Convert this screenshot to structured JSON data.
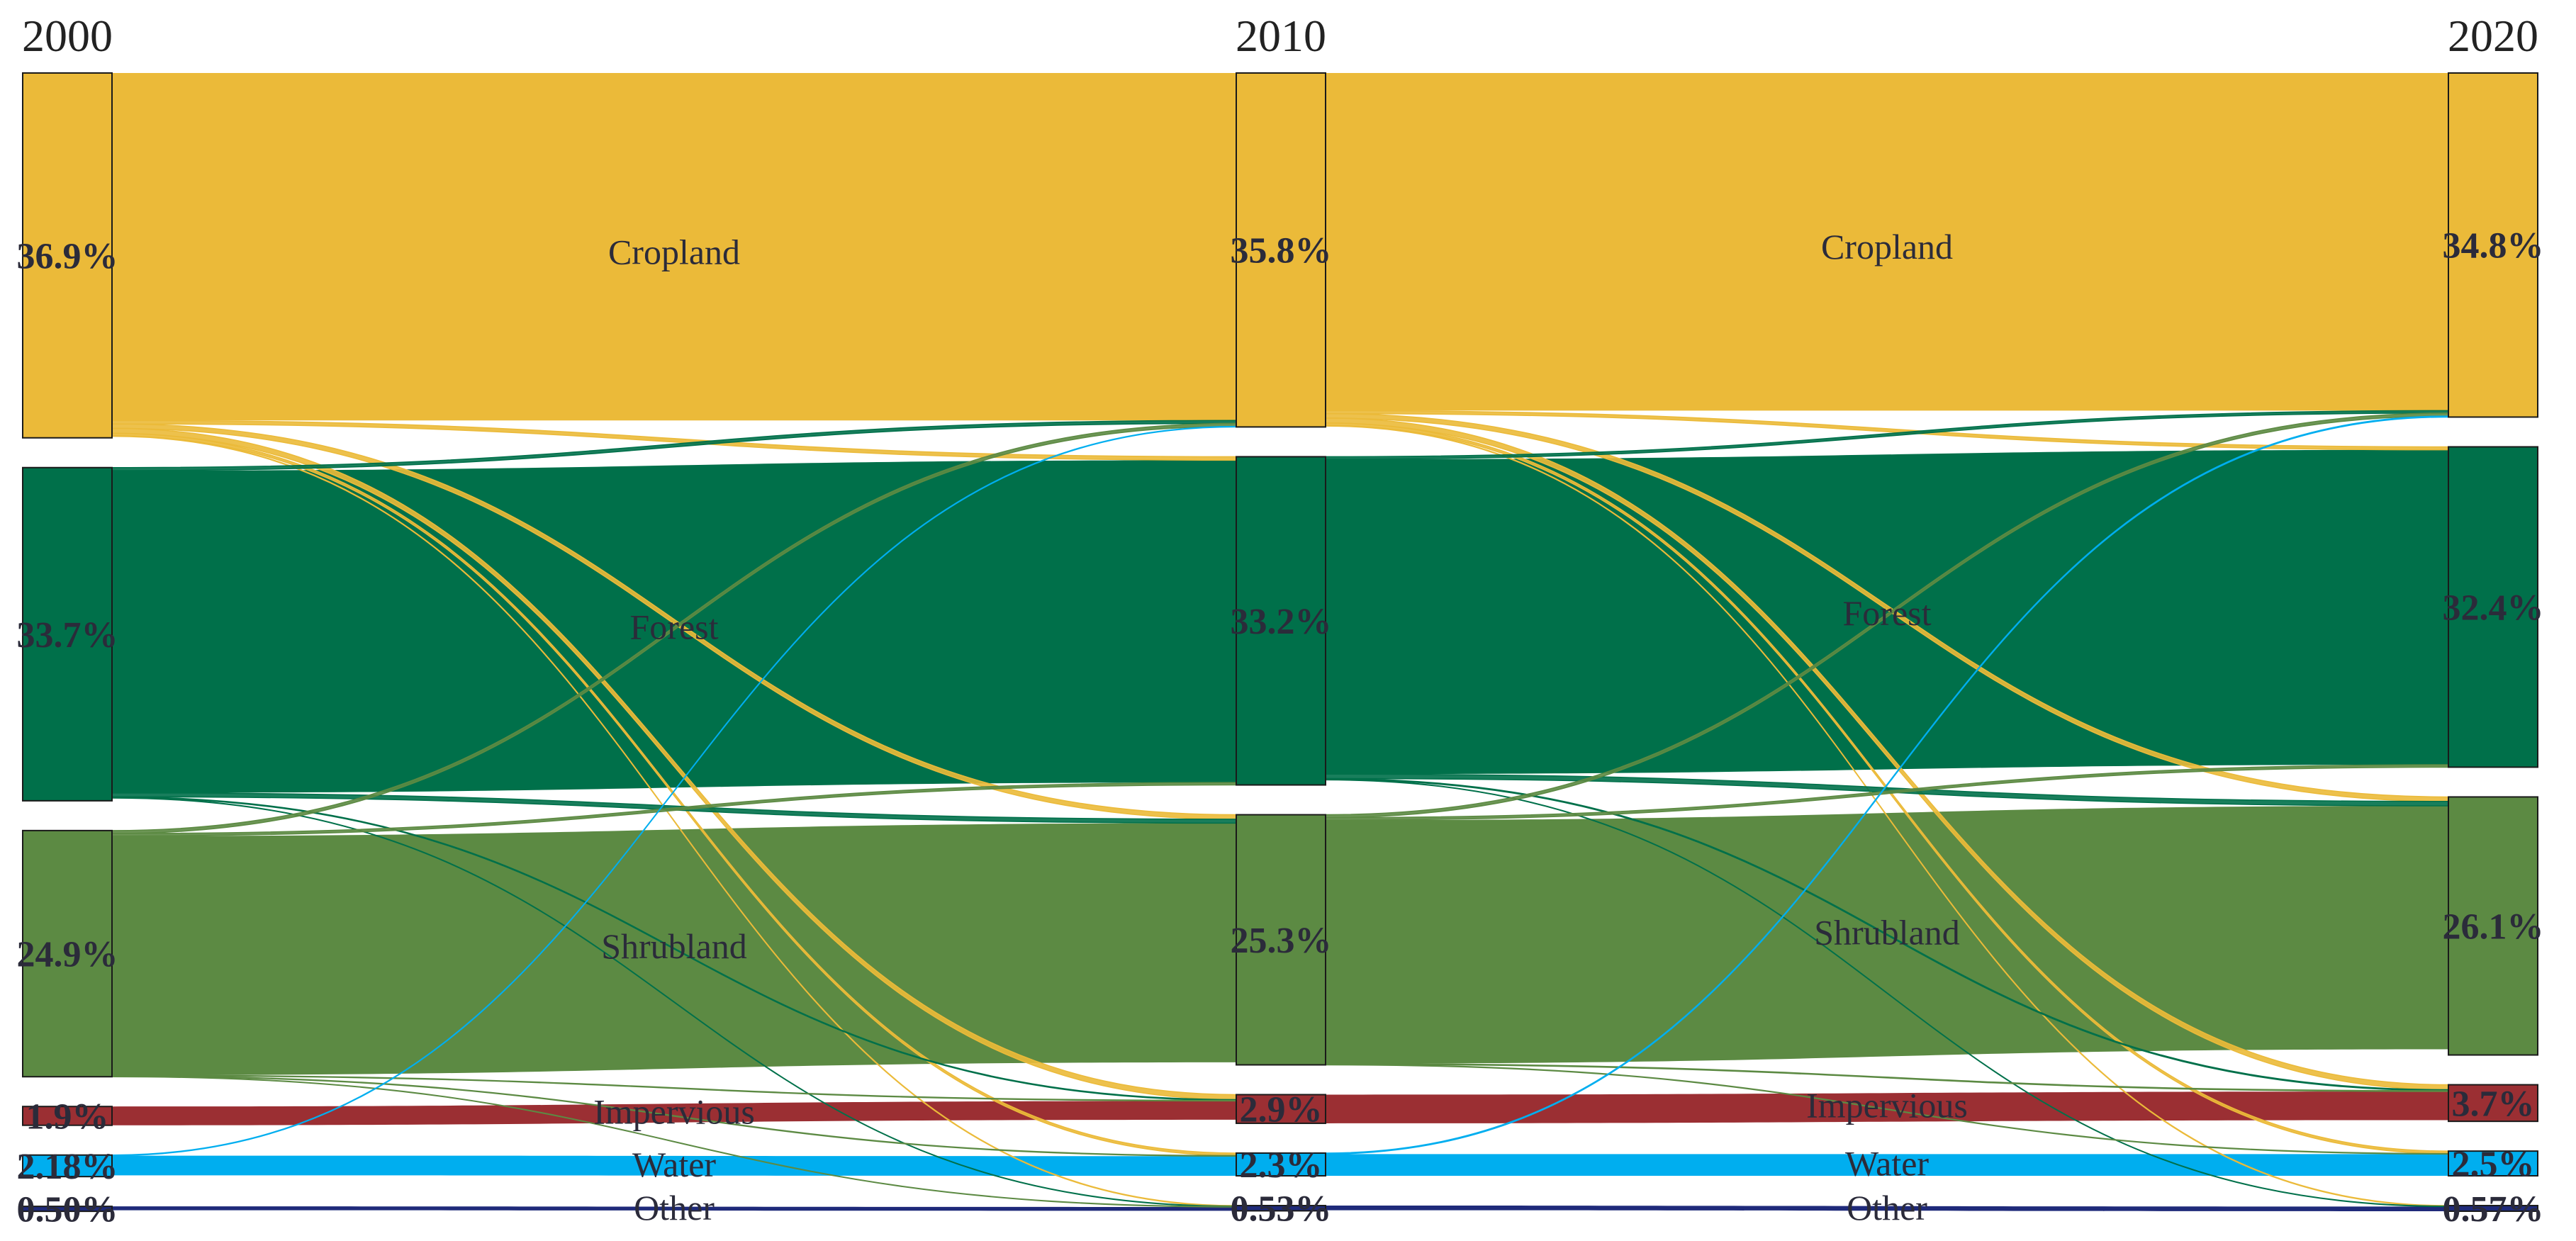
{
  "chart_data": {
    "type": "sankey",
    "years": [
      "2000",
      "2010",
      "2020"
    ],
    "classes": [
      {
        "name": "Cropland",
        "color": "#ebba39"
      },
      {
        "name": "Forest",
        "color": "#00704a"
      },
      {
        "name": "Shrubland",
        "color": "#5c8a43"
      },
      {
        "name": "Impervious",
        "color": "#9b2f33"
      },
      {
        "name": "Water",
        "color": "#00aeef"
      },
      {
        "name": "Other",
        "color": "#1f2a7a"
      }
    ],
    "percent_labels": {
      "2000": [
        "36.9%",
        "33.7%",
        "24.9%",
        "1.9%",
        "2.18%",
        "0.50%"
      ],
      "2010": [
        "35.8%",
        "33.2%",
        "25.3%",
        "2.9%",
        "2.3%",
        "0.53%"
      ],
      "2020": [
        "34.8%",
        "32.4%",
        "26.1%",
        "3.7%",
        "2.5%",
        "0.57%"
      ]
    },
    "shares": {
      "2000": [
        36.9,
        33.7,
        24.9,
        1.9,
        2.18,
        0.5
      ],
      "2010": [
        35.8,
        33.2,
        25.3,
        2.9,
        2.3,
        0.53
      ],
      "2020": [
        34.8,
        32.4,
        26.1,
        3.7,
        2.5,
        0.57
      ]
    },
    "minor_flows": [
      {
        "period": 0,
        "from": "Cropland",
        "to": "Forest",
        "value": 0.35
      },
      {
        "period": 0,
        "from": "Cropland",
        "to": "Shrubland",
        "value": 0.45
      },
      {
        "period": 0,
        "from": "Cropland",
        "to": "Impervious",
        "value": 0.5
      },
      {
        "period": 0,
        "from": "Cropland",
        "to": "Water",
        "value": 0.25
      },
      {
        "period": 0,
        "from": "Cropland",
        "to": "Other",
        "value": 0.06
      },
      {
        "period": 0,
        "from": "Forest",
        "to": "Cropland",
        "value": 0.3
      },
      {
        "period": 0,
        "from": "Forest",
        "to": "Shrubland",
        "value": 0.4
      },
      {
        "period": 0,
        "from": "Forest",
        "to": "Impervious",
        "value": 0.08
      },
      {
        "period": 0,
        "from": "Forest",
        "to": "Other",
        "value": 0.04
      },
      {
        "period": 0,
        "from": "Shrubland",
        "to": "Cropland",
        "value": 0.3
      },
      {
        "period": 0,
        "from": "Shrubland",
        "to": "Forest",
        "value": 0.25
      },
      {
        "period": 0,
        "from": "Shrubland",
        "to": "Impervious",
        "value": 0.06
      },
      {
        "period": 0,
        "from": "Shrubland",
        "to": "Water",
        "value": 0.06
      },
      {
        "period": 0,
        "from": "Shrubland",
        "to": "Other",
        "value": 0.04
      },
      {
        "period": 0,
        "from": "Water",
        "to": "Cropland",
        "value": 0.06
      },
      {
        "period": 1,
        "from": "Cropland",
        "to": "Forest",
        "value": 0.3
      },
      {
        "period": 1,
        "from": "Cropland",
        "to": "Shrubland",
        "value": 0.45
      },
      {
        "period": 1,
        "from": "Cropland",
        "to": "Impervious",
        "value": 0.5
      },
      {
        "period": 1,
        "from": "Cropland",
        "to": "Water",
        "value": 0.25
      },
      {
        "period": 1,
        "from": "Cropland",
        "to": "Other",
        "value": 0.06
      },
      {
        "period": 1,
        "from": "Forest",
        "to": "Cropland",
        "value": 0.25
      },
      {
        "period": 1,
        "from": "Forest",
        "to": "Shrubland",
        "value": 0.45
      },
      {
        "period": 1,
        "from": "Forest",
        "to": "Impervious",
        "value": 0.1
      },
      {
        "period": 1,
        "from": "Forest",
        "to": "Other",
        "value": 0.04
      },
      {
        "period": 1,
        "from": "Shrubland",
        "to": "Cropland",
        "value": 0.3
      },
      {
        "period": 1,
        "from": "Shrubland",
        "to": "Forest",
        "value": 0.25
      },
      {
        "period": 1,
        "from": "Shrubland",
        "to": "Impervious",
        "value": 0.08
      },
      {
        "period": 1,
        "from": "Shrubland",
        "to": "Water",
        "value": 0.05
      },
      {
        "period": 1,
        "from": "Water",
        "to": "Cropland",
        "value": 0.1
      }
    ]
  }
}
